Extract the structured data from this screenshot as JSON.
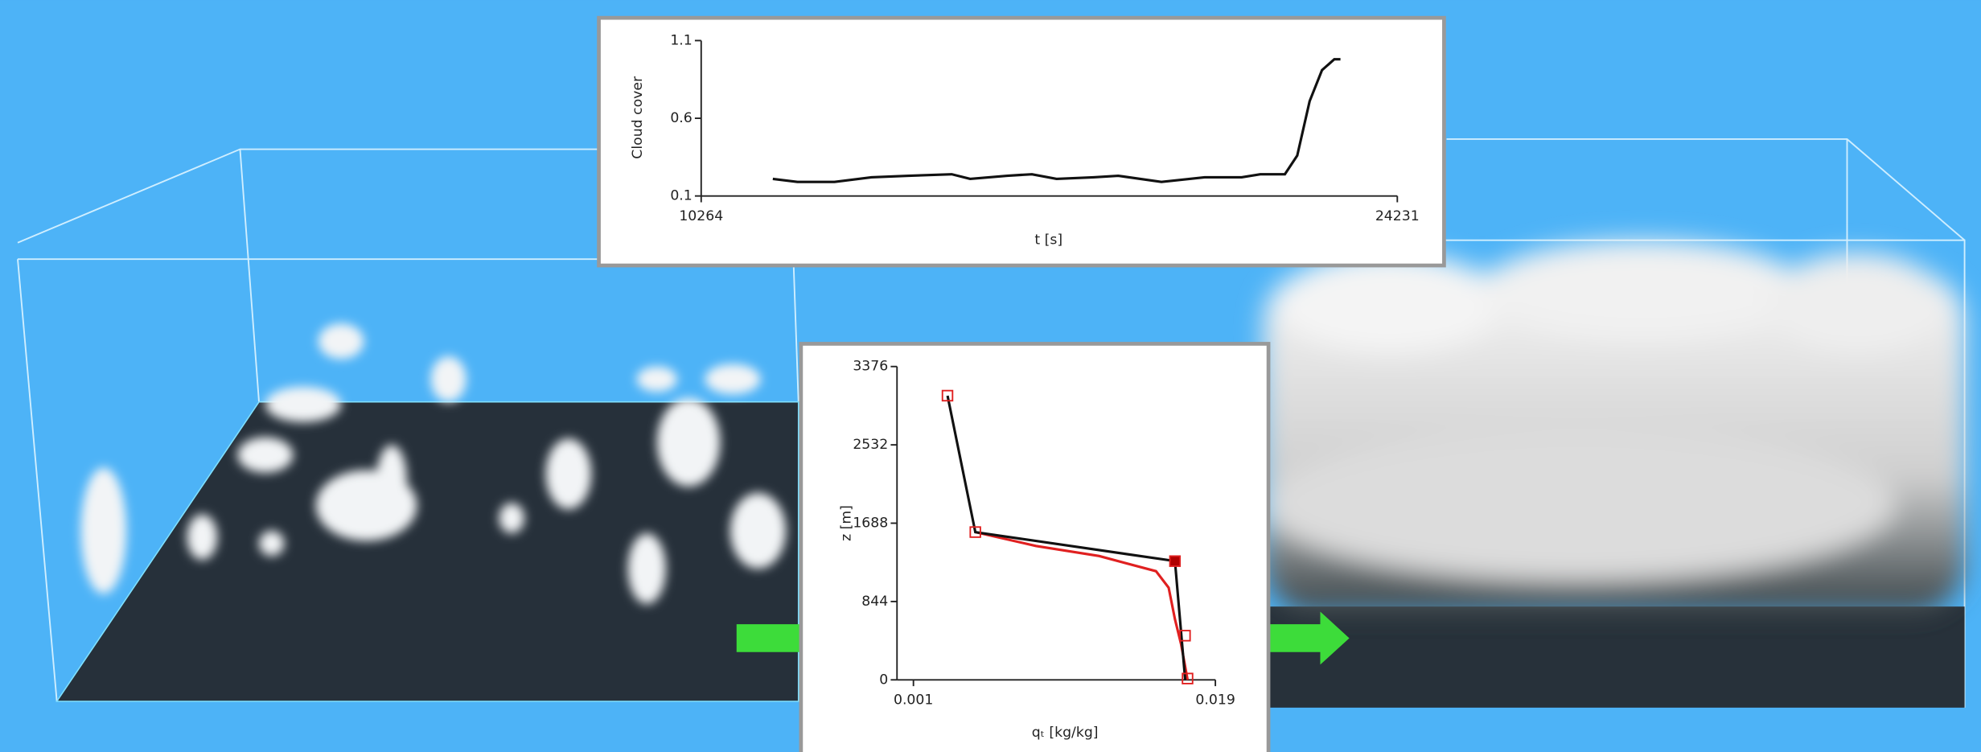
{
  "chart_data": [
    {
      "type": "line",
      "y_label": "Cloud cover",
      "x_label": "t [s]",
      "xlim": [
        10264,
        24231
      ],
      "xticks": [
        10264,
        24231
      ],
      "ylim": [
        0.1,
        1.1
      ],
      "yticks": [
        0.1,
        0.6,
        1.1
      ],
      "series": [
        {
          "color": "#111111",
          "x": [
            11700,
            12195,
            12938,
            13680,
            14423,
            15290,
            15661,
            16404,
            16899,
            17394,
            18137,
            18632,
            19499,
            20365,
            21108,
            21480,
            21975,
            22223,
            22471,
            22719,
            22966,
            23090
          ],
          "values": [
            0.21,
            0.19,
            0.19,
            0.22,
            0.23,
            0.24,
            0.21,
            0.23,
            0.24,
            0.21,
            0.22,
            0.23,
            0.19,
            0.22,
            0.22,
            0.24,
            0.24,
            0.36,
            0.71,
            0.91,
            0.98,
            0.98
          ]
        }
      ]
    },
    {
      "type": "profile",
      "y_label": "z [m]",
      "x_label": "qₜ [kg/kg]",
      "xlim": [
        0.001,
        0.019
      ],
      "xticks": [
        0.001,
        0.019
      ],
      "ylim": [
        0,
        3376
      ],
      "yticks": [
        0,
        844,
        1688,
        2532,
        3376
      ],
      "series": [
        {
          "color": "#e02020",
          "x": [
            0.00469,
            0.0083,
            0.01207,
            0.01546,
            0.01621,
            0.01659,
            0.01696,
            0.01734
          ],
          "values": [
            1592,
            1443,
            1334,
            1171,
            994,
            653,
            381,
            0
          ]
        },
        {
          "color": "#111111",
          "x": [
            0.00303,
            0.00469,
            0.01659,
            0.0172
          ],
          "values": [
            3062,
            1592,
            1279,
            0
          ]
        }
      ],
      "markers": {
        "color": "#e02020",
        "x": [
          0.00303,
          0.00469,
          0.01659,
          0.01719,
          0.01734
        ],
        "values": [
          3062,
          1592,
          1279,
          476,
          14
        ]
      }
    }
  ]
}
